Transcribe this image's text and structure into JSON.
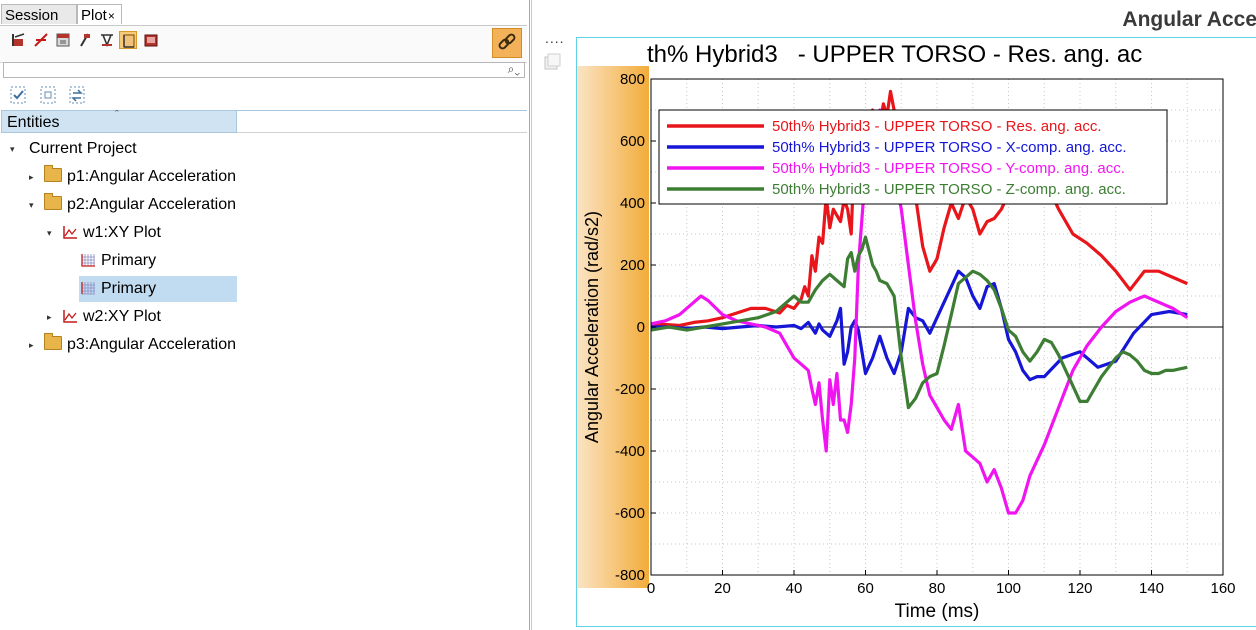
{
  "tabs": {
    "session": "Session",
    "plot": "Plot",
    "plot_close": "×"
  },
  "search": {
    "icon": "⌕⌄"
  },
  "entities": {
    "header": "Entities",
    "sort_glyph": "ˆ"
  },
  "tree": {
    "root": "Current Project",
    "p1": "p1:Angular Acceleration",
    "p2": "p2:Angular Acceleration",
    "w1": "w1:XY Plot",
    "primary1": "Primary",
    "primary2": "Primary",
    "w2": "w2:XY Plot",
    "p3": "p3:Angular Acceleration"
  },
  "colors": {
    "accent": "#f3b25a",
    "selection": "#c1dcf1",
    "frame": "#61d2e4"
  },
  "page": {
    "title": "Angular Acce",
    "dots": "....",
    "window_icon": "window-icon"
  },
  "chart_data": {
    "type": "line",
    "title": "th% Hybrid3   - UPPER TORSO - Res. ang. ac",
    "xlabel": "Time (ms)",
    "ylabel": "Angular Acceleration (rad/s2)",
    "xlim": [
      0,
      160
    ],
    "ylim": [
      -800,
      800
    ],
    "xticks": [
      0,
      20,
      40,
      60,
      80,
      100,
      120,
      140,
      160
    ],
    "yticks": [
      -800,
      -600,
      -400,
      -200,
      0,
      200,
      400,
      600,
      800
    ],
    "grid": true,
    "legend_position": "top-left",
    "series": [
      {
        "name": "50th% Hybrid3   - UPPER TORSO - Res. ang. acc.",
        "color": "#e8151b",
        "x": [
          0,
          4,
          8,
          12,
          16,
          20,
          24,
          28,
          32,
          36,
          38,
          40,
          42,
          43,
          44,
          45,
          46,
          47,
          48,
          49,
          50,
          51,
          52,
          53,
          54,
          55,
          56,
          57,
          58,
          59,
          60,
          62,
          64,
          65,
          66,
          67,
          68,
          70,
          72,
          74,
          76,
          78,
          80,
          82,
          84,
          86,
          88,
          90,
          92,
          94,
          96,
          98,
          100,
          102,
          106,
          110,
          114,
          118,
          122,
          126,
          130,
          134,
          138,
          142,
          146,
          150
        ],
        "y": [
          10,
          8,
          5,
          15,
          20,
          30,
          45,
          60,
          60,
          45,
          70,
          60,
          90,
          130,
          100,
          230,
          180,
          290,
          270,
          420,
          320,
          380,
          360,
          340,
          410,
          380,
          300,
          600,
          640,
          580,
          620,
          700,
          650,
          720,
          680,
          760,
          700,
          620,
          500,
          420,
          260,
          180,
          220,
          320,
          400,
          350,
          420,
          380,
          300,
          340,
          350,
          380,
          430,
          600,
          560,
          480,
          380,
          300,
          270,
          230,
          180,
          120,
          180,
          180,
          160,
          140
        ]
      },
      {
        "name": "50th% Hybrid3   - UPPER TORSO - X-comp. ang. acc.",
        "color": "#1616d6",
        "x": [
          0,
          5,
          10,
          15,
          20,
          25,
          30,
          35,
          40,
          42,
          44,
          46,
          47,
          48,
          50,
          52,
          53,
          54,
          55,
          56,
          57,
          58,
          60,
          62,
          64,
          66,
          68,
          70,
          72,
          74,
          76,
          78,
          80,
          82,
          84,
          86,
          88,
          90,
          92,
          94,
          96,
          98,
          100,
          102,
          104,
          106,
          108,
          110,
          115,
          120,
          125,
          130,
          135,
          140,
          145,
          150
        ],
        "y": [
          0,
          0,
          -5,
          0,
          -5,
          0,
          5,
          0,
          5,
          -5,
          15,
          -20,
          10,
          -10,
          -30,
          20,
          60,
          -120,
          -80,
          0,
          20,
          -10,
          -150,
          -100,
          -30,
          -100,
          -150,
          -80,
          60,
          30,
          20,
          -20,
          30,
          80,
          130,
          180,
          160,
          100,
          60,
          130,
          140,
          60,
          -40,
          -80,
          -140,
          -170,
          -160,
          -160,
          -100,
          -80,
          -130,
          -110,
          -20,
          40,
          50,
          40
        ]
      },
      {
        "name": "50th% Hybrid3   - UPPER TORSO - Y-comp. ang. acc.",
        "color": "#f015f0",
        "x": [
          0,
          4,
          8,
          12,
          14,
          16,
          20,
          24,
          28,
          32,
          36,
          38,
          40,
          42,
          44,
          45,
          46,
          47,
          48,
          49,
          50,
          51,
          52,
          53,
          54,
          55,
          56,
          57,
          58,
          60,
          62,
          64,
          66,
          68,
          70,
          72,
          74,
          76,
          78,
          80,
          82,
          84,
          86,
          88,
          90,
          92,
          94,
          96,
          98,
          100,
          102,
          104,
          106,
          110,
          114,
          118,
          122,
          126,
          130,
          134,
          138,
          142,
          146,
          150
        ],
        "y": [
          10,
          20,
          40,
          80,
          100,
          85,
          40,
          20,
          10,
          0,
          -20,
          -60,
          -100,
          -120,
          -140,
          -200,
          -250,
          -180,
          -300,
          -400,
          -170,
          -250,
          -150,
          -300,
          -300,
          -340,
          -250,
          -100,
          200,
          500,
          650,
          700,
          650,
          500,
          380,
          200,
          20,
          -120,
          -220,
          -260,
          -300,
          -330,
          -250,
          -400,
          -420,
          -440,
          -500,
          -460,
          -520,
          -600,
          -600,
          -560,
          -480,
          -380,
          -260,
          -140,
          -60,
          0,
          50,
          80,
          100,
          80,
          60,
          30
        ]
      },
      {
        "name": "50th% Hybrid3   - UPPER TORSO - Z-comp. ang. acc.",
        "color": "#3d7e34",
        "x": [
          0,
          5,
          10,
          15,
          20,
          25,
          30,
          35,
          38,
          40,
          42,
          44,
          46,
          48,
          50,
          52,
          54,
          55,
          56,
          57,
          58,
          59,
          60,
          62,
          63,
          64,
          66,
          68,
          70,
          72,
          74,
          76,
          78,
          80,
          82,
          84,
          86,
          88,
          90,
          92,
          94,
          96,
          98,
          100,
          102,
          104,
          106,
          108,
          110,
          112,
          114,
          116,
          118,
          120,
          122,
          124,
          126,
          128,
          130,
          132,
          134,
          136,
          138,
          140,
          142,
          144,
          146,
          148,
          150
        ],
        "y": [
          -10,
          0,
          -10,
          0,
          10,
          20,
          30,
          50,
          80,
          100,
          80,
          80,
          120,
          150,
          170,
          150,
          130,
          220,
          240,
          180,
          230,
          250,
          290,
          200,
          180,
          150,
          140,
          100,
          -100,
          -260,
          -230,
          -180,
          -160,
          -150,
          -60,
          40,
          140,
          160,
          180,
          170,
          150,
          120,
          60,
          -10,
          -30,
          -80,
          -110,
          -80,
          -40,
          -50,
          -90,
          -140,
          -190,
          -240,
          -240,
          -200,
          -160,
          -130,
          -100,
          -80,
          -90,
          -110,
          -140,
          -150,
          -150,
          -140,
          -140,
          -135,
          -130
        ]
      }
    ]
  }
}
